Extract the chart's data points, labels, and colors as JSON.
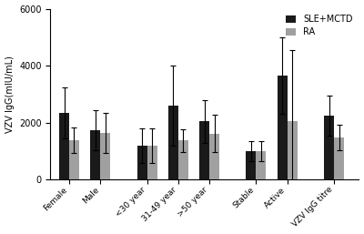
{
  "categories": [
    "Female",
    "Male",
    "<30 year",
    "31-49 year",
    ">50 year",
    "Stable",
    "Active",
    "VZV IgG titre"
  ],
  "sle_mctd_values": [
    2350,
    1750,
    1200,
    2600,
    2050,
    1000,
    3650,
    2250
  ],
  "ra_values": [
    1400,
    1650,
    1200,
    1380,
    1620,
    1000,
    2050,
    1480
  ],
  "sle_mctd_errors": [
    900,
    700,
    600,
    1400,
    750,
    350,
    1350,
    700
  ],
  "ra_errors": [
    450,
    700,
    600,
    400,
    650,
    350,
    2500,
    450
  ],
  "sle_color": "#1a1a1a",
  "ra_color": "#a0a0a0",
  "ylabel": "VZV IgG(mIU/mL)",
  "ylim": [
    0,
    6000
  ],
  "yticks": [
    0,
    2000,
    4000,
    6000
  ],
  "legend_labels": [
    "SLE+MCTD",
    "RA"
  ],
  "bar_width": 0.32,
  "figsize": [
    4.0,
    2.57
  ],
  "dpi": 100,
  "group_positions": [
    0.5,
    1.5,
    3.0,
    4.0,
    5.0,
    6.5,
    7.5,
    9.0
  ],
  "background_color": "#ffffff"
}
